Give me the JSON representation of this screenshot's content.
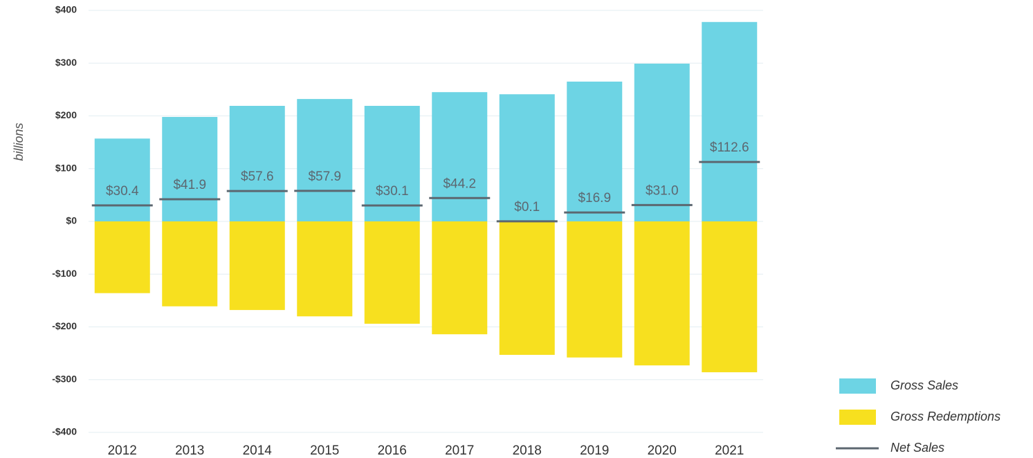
{
  "chart_data": {
    "type": "bar",
    "y_axis_label": "billions",
    "categories": [
      "2012",
      "2013",
      "2014",
      "2015",
      "2016",
      "2017",
      "2018",
      "2019",
      "2020",
      "2021"
    ],
    "series": [
      {
        "name": "Gross Sales",
        "color": "#6dd4e4",
        "values": [
          157,
          198,
          219,
          232,
          219,
          245,
          241,
          265,
          299,
          378
        ]
      },
      {
        "name": "Gross Redemptions",
        "color": "#f7e01f",
        "values": [
          -136,
          -161,
          -168,
          -180,
          -194,
          -214,
          -253,
          -258,
          -273,
          -286
        ]
      },
      {
        "name": "Net Sales",
        "color": "#5c6770",
        "values": [
          30.4,
          41.9,
          57.6,
          57.9,
          30.1,
          44.2,
          0.1,
          16.9,
          31.0,
          112.6
        ],
        "value_labels": [
          "$30.4",
          "$41.9",
          "$57.6",
          "$57.9",
          "$30.1",
          "$44.2",
          "$0.1",
          "$16.9",
          "$31.0",
          "$112.6"
        ]
      }
    ],
    "ylim": [
      -400,
      400
    ],
    "yticks": [
      {
        "value": 400,
        "label": "$400"
      },
      {
        "value": 300,
        "label": "$300"
      },
      {
        "value": 200,
        "label": "$200"
      },
      {
        "value": 100,
        "label": "$100"
      },
      {
        "value": 0,
        "label": "$0"
      },
      {
        "value": -100,
        "label": "-$100"
      },
      {
        "value": -200,
        "label": "-$200"
      },
      {
        "value": -300,
        "label": "-$300"
      },
      {
        "value": -400,
        "label": "-$400"
      }
    ],
    "grid": true
  }
}
